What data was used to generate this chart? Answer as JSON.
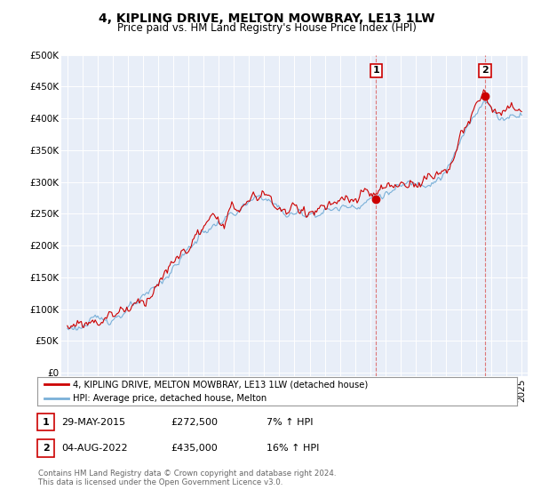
{
  "title": "4, KIPLING DRIVE, MELTON MOWBRAY, LE13 1LW",
  "subtitle": "Price paid vs. HM Land Registry's House Price Index (HPI)",
  "ylabel_ticks": [
    "£0",
    "£50K",
    "£100K",
    "£150K",
    "£200K",
    "£250K",
    "£300K",
    "£350K",
    "£400K",
    "£450K",
    "£500K"
  ],
  "ytick_values": [
    0,
    50000,
    100000,
    150000,
    200000,
    250000,
    300000,
    350000,
    400000,
    450000,
    500000
  ],
  "ylim": [
    -5000,
    500000
  ],
  "xlim_start": 1994.6,
  "xlim_end": 2025.4,
  "hpi_color": "#7ab0d8",
  "price_color": "#cc0000",
  "annotation1_date": 2015.38,
  "annotation1_price": 272500,
  "annotation2_date": 2022.58,
  "annotation2_price": 435000,
  "legend_line1": "4, KIPLING DRIVE, MELTON MOWBRAY, LE13 1LW (detached house)",
  "legend_line2": "HPI: Average price, detached house, Melton",
  "table_row1": [
    "1",
    "29-MAY-2015",
    "£272,500",
    "7% ↑ HPI"
  ],
  "table_row2": [
    "2",
    "04-AUG-2022",
    "£435,000",
    "16% ↑ HPI"
  ],
  "footnote": "Contains HM Land Registry data © Crown copyright and database right 2024.\nThis data is licensed under the Open Government Licence v3.0.",
  "background_color": "#ffffff",
  "plot_bg_color": "#e8eef8"
}
